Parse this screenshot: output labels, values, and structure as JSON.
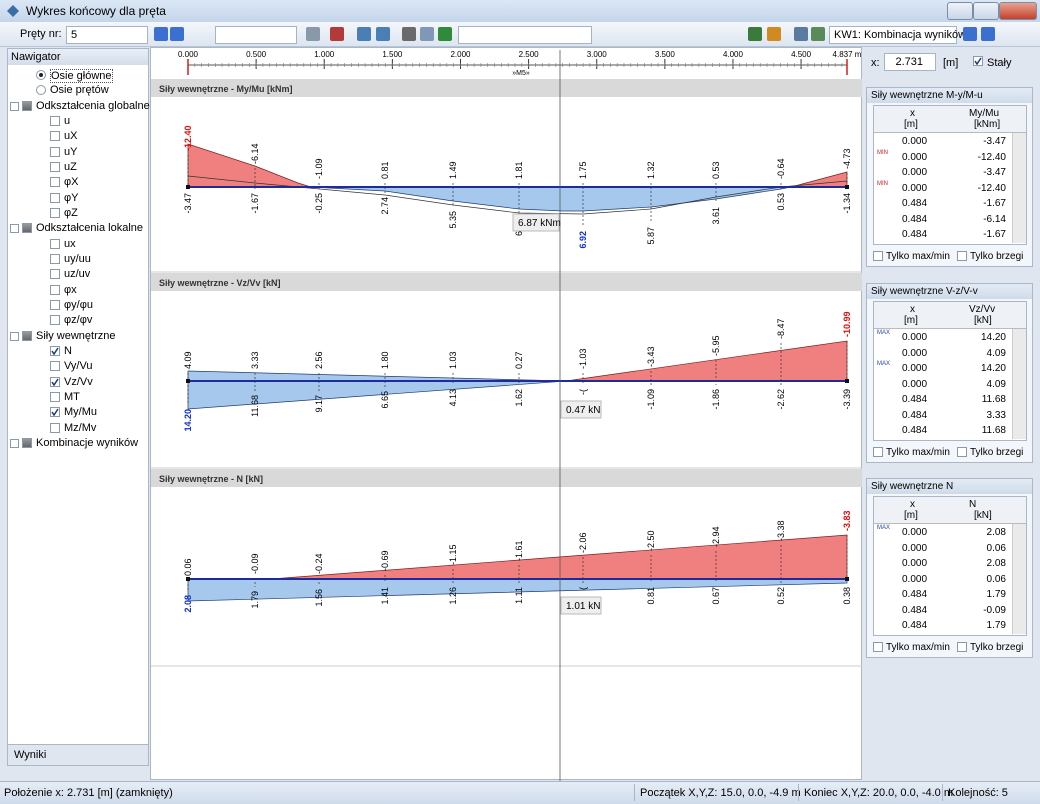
{
  "window": {
    "title": "Wykres końcowy dla pręta"
  },
  "toolbar": {
    "member_label": "Pręty nr:",
    "member": "5",
    "combination": "KW1: Kombinacja wyników"
  },
  "navigator": {
    "title": "Nawigator",
    "tab": "Wyniki",
    "items": [
      {
        "label": "Osie główne",
        "kind": "radio",
        "checked": true
      },
      {
        "label": "Osie prętów",
        "kind": "radio",
        "checked": false
      },
      {
        "label": "Odkształcenia globalne",
        "kind": "group",
        "checked": false
      },
      {
        "label": "u",
        "kind": "check",
        "checked": false
      },
      {
        "label": "uX",
        "kind": "check",
        "checked": false
      },
      {
        "label": "uY",
        "kind": "check",
        "checked": false
      },
      {
        "label": "uZ",
        "kind": "check",
        "checked": false
      },
      {
        "label": "φX",
        "kind": "check",
        "checked": false
      },
      {
        "label": "φY",
        "kind": "check",
        "checked": false
      },
      {
        "label": "φZ",
        "kind": "check",
        "checked": false
      },
      {
        "label": "Odkształcenia lokalne",
        "kind": "group",
        "checked": false
      },
      {
        "label": "ux",
        "kind": "check",
        "checked": false
      },
      {
        "label": "uy/uu",
        "kind": "check",
        "checked": false
      },
      {
        "label": "uz/uv",
        "kind": "check",
        "checked": false
      },
      {
        "label": "φx",
        "kind": "check",
        "checked": false
      },
      {
        "label": "φy/φu",
        "kind": "check",
        "checked": false
      },
      {
        "label": "φz/φv",
        "kind": "check",
        "checked": false
      },
      {
        "label": "Siły wewnętrzne",
        "kind": "group",
        "checked": false
      },
      {
        "label": "N",
        "kind": "check",
        "checked": true
      },
      {
        "label": "Vy/Vu",
        "kind": "check",
        "checked": false
      },
      {
        "label": "Vz/Vv",
        "kind": "check",
        "checked": true
      },
      {
        "label": "MT",
        "kind": "check",
        "checked": false
      },
      {
        "label": "My/Mu",
        "kind": "check",
        "checked": true
      },
      {
        "label": "Mz/Mv",
        "kind": "check",
        "checked": false
      },
      {
        "label": "Kombinacje wyników",
        "kind": "group",
        "checked": false
      }
    ]
  },
  "ruler": {
    "member": "»M5»",
    "ticks": [
      {
        "value": 0,
        "label": "0.000"
      },
      {
        "value": 0.5,
        "label": "0.500"
      },
      {
        "value": 1,
        "label": "1.000"
      },
      {
        "value": 1.5,
        "label": "1.500"
      },
      {
        "value": 2,
        "label": "2.000"
      },
      {
        "value": 2.5,
        "label": "2.500"
      },
      {
        "value": 3,
        "label": "3.000"
      },
      {
        "value": 3.5,
        "label": "3.500"
      },
      {
        "value": 4,
        "label": "4.000"
      },
      {
        "value": 4.5,
        "label": "4.500"
      },
      {
        "value": 4.837,
        "label": "4.837 m"
      }
    ]
  },
  "position": {
    "label": "x:",
    "value": "2.731",
    "unit": "[m]",
    "fixed": "Stały"
  },
  "diagrams": [
    {
      "title": "Siły wewnętrzne - My/Mu [kNm]",
      "tooltip": "6.87 kNm",
      "top_labels": [
        "-12.40",
        "-6.14",
        "-1.09",
        "0.81",
        "1.49",
        "1.81",
        "1.75",
        "1.32",
        "0.53",
        "-0.64",
        "-4.73"
      ],
      "bottom_labels": [
        "-3.47",
        "-1.67",
        "-0.25",
        "2.74",
        "5.35",
        "6",
        "6.92",
        "5.87",
        "3.61",
        "0.53",
        "-1.34"
      ]
    },
    {
      "title": "Siły wewnętrzne - Vz/Vv [kN]",
      "tooltip": "0.47 kN",
      "top_labels": [
        "4.09",
        "3.33",
        "2.56",
        "1.80",
        "1.03",
        "0.27",
        "-1.03",
        "-3.43",
        "-5.95",
        "-8.47",
        "-10.99"
      ],
      "bottom_labels": [
        "14.20",
        "11.68",
        "9.17",
        "6.65",
        "4.13",
        "1.62",
        "-(",
        "-1.09",
        "-1.86",
        "-2.62",
        "-3.39"
      ]
    },
    {
      "title": "Siły wewnętrzne - N [kN]",
      "tooltip": "1.01 kN",
      "top_labels": [
        "0.06",
        "-0.09",
        "-0.24",
        "-0.69",
        "-1.15",
        "-1.61",
        "-2.06",
        "-2.50",
        "-2.94",
        "-3.38",
        "-3.83"
      ],
      "bottom_labels": [
        "2.08",
        "1.79",
        "1.56",
        "1.41",
        "1.26",
        "1.11",
        "(",
        "0.81",
        "0.67",
        "0.52",
        "0.38"
      ]
    }
  ],
  "panels": [
    {
      "title": "Siły wewnętrzne M-y/M-u",
      "header_x": [
        "x",
        "[m]"
      ],
      "header_value": [
        "My/Mu",
        "[kNm]"
      ],
      "rows": [
        {
          "x": "0.000",
          "value": "-3.47"
        },
        {
          "x": "0.000",
          "value": "-12.40",
          "marker": "MIN"
        },
        {
          "x": "0.000",
          "value": "-3.47"
        },
        {
          "x": "0.000",
          "value": "-12.40",
          "marker": "MIN"
        },
        {
          "x": "0.484",
          "value": "-1.67"
        },
        {
          "x": "0.484",
          "value": "-6.14"
        },
        {
          "x": "0.484",
          "value": "-1.67"
        }
      ],
      "options": [
        "Tylko max/min",
        "Tylko brzegi"
      ]
    },
    {
      "title": "Siły wewnętrzne V-z/V-v",
      "header_x": [
        "x",
        "[m]"
      ],
      "header_value": [
        "Vz/Vv",
        "[kN]"
      ],
      "rows": [
        {
          "x": "0.000",
          "value": "14.20",
          "marker": "MAX"
        },
        {
          "x": "0.000",
          "value": "4.09"
        },
        {
          "x": "0.000",
          "value": "14.20",
          "marker": "MAX"
        },
        {
          "x": "0.000",
          "value": "4.09"
        },
        {
          "x": "0.484",
          "value": "11.68"
        },
        {
          "x": "0.484",
          "value": "3.33"
        },
        {
          "x": "0.484",
          "value": "11.68"
        }
      ],
      "options": [
        "Tylko max/min",
        "Tylko brzegi"
      ]
    },
    {
      "title": "Siły wewnętrzne N",
      "header_x": [
        "x",
        "[m]"
      ],
      "header_value": [
        "N",
        "[kN]"
      ],
      "rows": [
        {
          "x": "0.000",
          "value": "2.08",
          "marker": "MAX"
        },
        {
          "x": "0.000",
          "value": "0.06"
        },
        {
          "x": "0.000",
          "value": "2.08"
        },
        {
          "x": "0.000",
          "value": "0.06"
        },
        {
          "x": "0.484",
          "value": "1.79"
        },
        {
          "x": "0.484",
          "value": "-0.09"
        },
        {
          "x": "0.484",
          "value": "1.79"
        }
      ],
      "options": [
        "Tylko max/min",
        "Tylko brzegi"
      ]
    }
  ],
  "status": [
    "Położenie x: 2.731 [m] (zamknięty)",
    "Początek X,Y,Z:  15.0, 0.0, -4.9 m",
    "Koniec X,Y,Z:  20.0, 0.0, -4.0 m",
    "Kolejność:  5"
  ]
}
